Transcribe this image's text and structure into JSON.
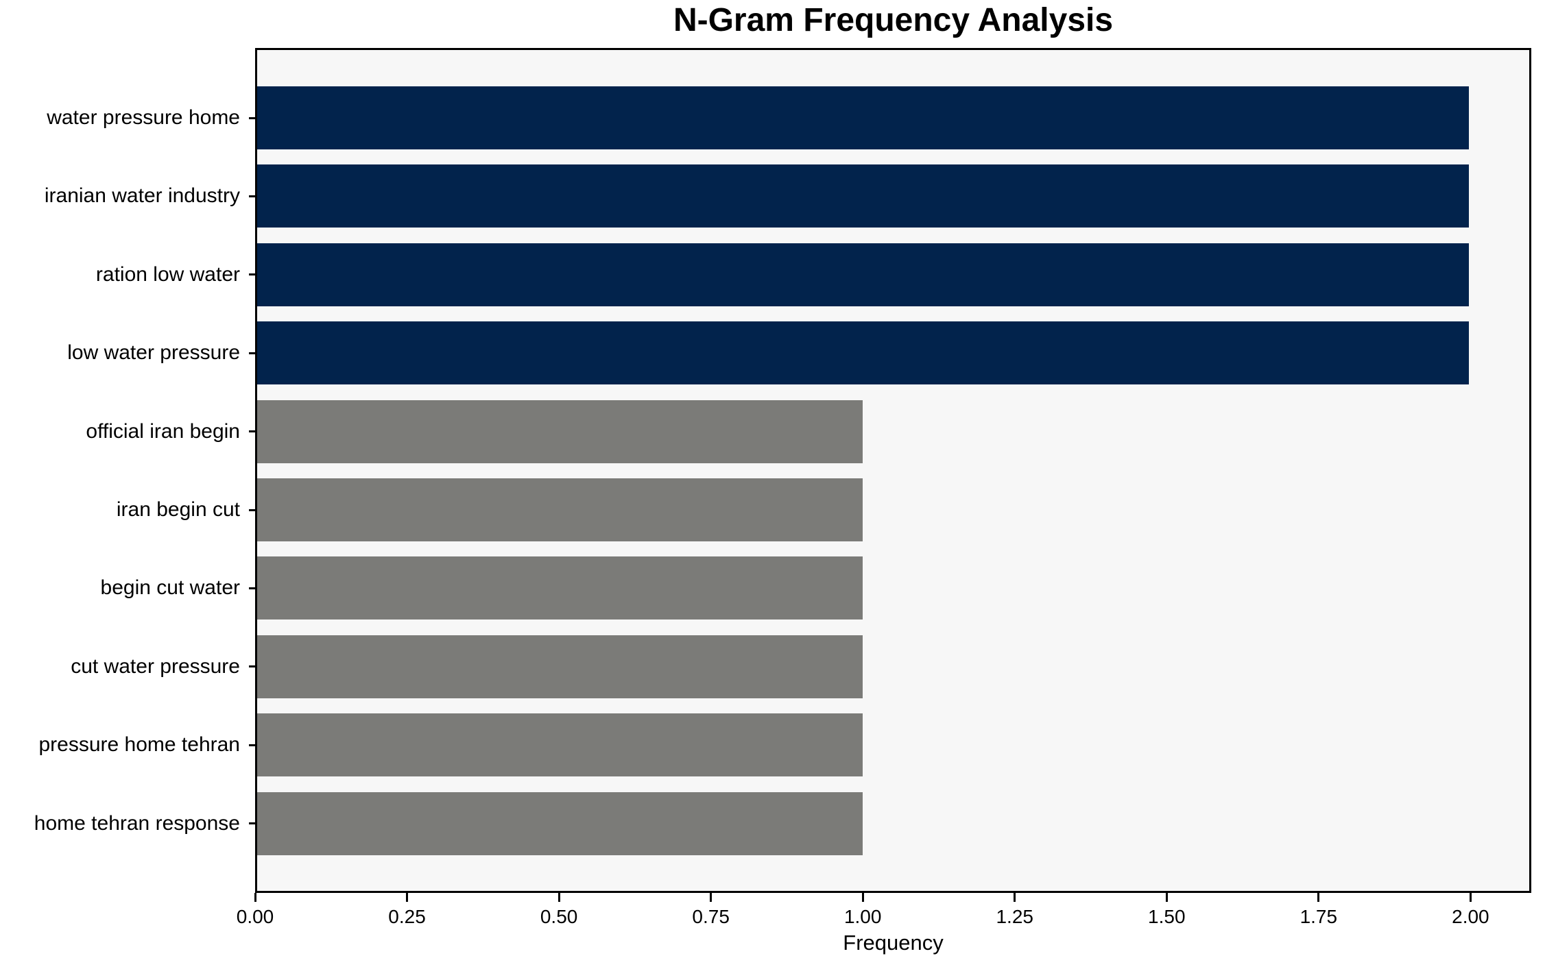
{
  "chart_data": {
    "type": "bar",
    "orientation": "horizontal",
    "title": "N-Gram Frequency Analysis",
    "xlabel": "Frequency",
    "ylabel": "",
    "categories": [
      "water pressure home",
      "iranian water industry",
      "ration low water",
      "low water pressure",
      "official iran begin",
      "iran begin cut",
      "begin cut water",
      "cut water pressure",
      "pressure home tehran",
      "home tehran response"
    ],
    "values": [
      2,
      2,
      2,
      2,
      1,
      1,
      1,
      1,
      1,
      1
    ],
    "bar_colors": [
      "#02234c",
      "#02234c",
      "#02234c",
      "#02234c",
      "#7b7b78",
      "#7b7b78",
      "#7b7b78",
      "#7b7b78",
      "#7b7b78",
      "#7b7b78"
    ],
    "xlim": [
      0,
      2.1
    ],
    "xticks": [
      0,
      0.25,
      0.5,
      0.75,
      1,
      1.25,
      1.5,
      1.75,
      2
    ],
    "xtick_labels": [
      "0.00",
      "0.25",
      "0.50",
      "0.75",
      "1.00",
      "1.25",
      "1.50",
      "1.75",
      "2.00"
    ],
    "grid": false,
    "legend": "none",
    "colors": {
      "highlight": "#02234c",
      "default": "#7b7b78",
      "plot_background": "#f7f7f7",
      "figure_background": "#ffffff",
      "axis": "#000000"
    }
  }
}
